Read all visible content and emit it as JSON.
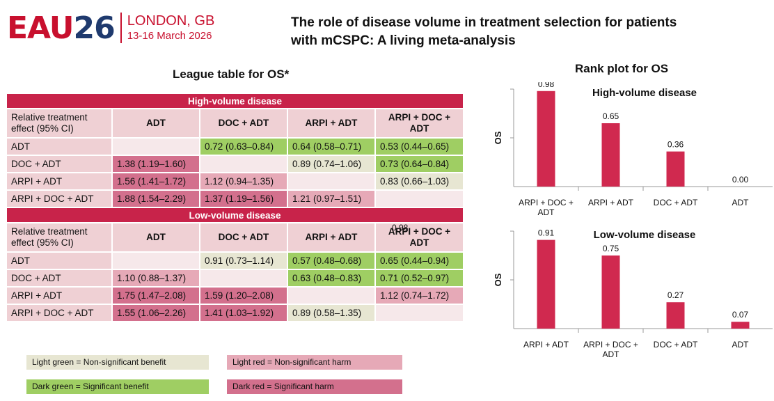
{
  "header": {
    "logo_eau": "EAU",
    "logo_num": "26",
    "logo_city": "LONDON, GB",
    "logo_dates": "13-16 March 2026",
    "title_line1": "The role of disease volume in treatment selection for patients",
    "title_line2": "with mCSPC: A living meta-analysis"
  },
  "league": {
    "title": "League table for OS*",
    "stray_label": "0.98",
    "sections": [
      {
        "name": "High-volume disease",
        "corner": "Relative treatment effect (95% CI)",
        "columns": [
          "ADT",
          "DOC + ADT",
          "ARPI + ADT",
          "ARPI + DOC + ADT"
        ],
        "rows": [
          {
            "label": "ADT",
            "cells": [
              {
                "text": "",
                "fill": "empty"
              },
              {
                "text": "0.72 (0.63–0.84)",
                "fill": "dark-green"
              },
              {
                "text": "0.64 (0.58–0.71)",
                "fill": "dark-green"
              },
              {
                "text": "0.53 (0.44–0.65)",
                "fill": "dark-green"
              }
            ]
          },
          {
            "label": "DOC + ADT",
            "cells": [
              {
                "text": "1.38 (1.19–1.60)",
                "fill": "dark-red"
              },
              {
                "text": "",
                "fill": "empty"
              },
              {
                "text": "0.89 (0.74–1.06)",
                "fill": "light-green"
              },
              {
                "text": "0.73 (0.64–0.84)",
                "fill": "dark-green"
              }
            ]
          },
          {
            "label": "ARPI + ADT",
            "cells": [
              {
                "text": "1.56 (1.41–1.72)",
                "fill": "dark-red"
              },
              {
                "text": "1.12 (0.94–1.35)",
                "fill": "light-red"
              },
              {
                "text": "",
                "fill": "empty"
              },
              {
                "text": "0.83 (0.66–1.03)",
                "fill": "light-green"
              }
            ]
          },
          {
            "label": "ARPI + DOC + ADT",
            "cells": [
              {
                "text": "1.88 (1.54–2.29)",
                "fill": "dark-red"
              },
              {
                "text": "1.37 (1.19–1.56)",
                "fill": "dark-red"
              },
              {
                "text": "1.21 (0.97–1.51)",
                "fill": "light-red"
              },
              {
                "text": "",
                "fill": "empty"
              }
            ]
          }
        ]
      },
      {
        "name": "Low-volume disease",
        "corner": "Relative treatment effect (95% CI)",
        "columns": [
          "ADT",
          "DOC + ADT",
          "ARPI + ADT",
          "ARPI + DOC + ADT"
        ],
        "rows": [
          {
            "label": "ADT",
            "cells": [
              {
                "text": "",
                "fill": "empty"
              },
              {
                "text": "0.91 (0.73–1.14)",
                "fill": "light-green"
              },
              {
                "text": "0.57 (0.48–0.68)",
                "fill": "dark-green"
              },
              {
                "text": "0.65 (0.44–0.94)",
                "fill": "dark-green"
              }
            ]
          },
          {
            "label": "DOC + ADT",
            "cells": [
              {
                "text": "1.10 (0.88–1.37)",
                "fill": "light-red"
              },
              {
                "text": "",
                "fill": "empty"
              },
              {
                "text": "0.63 (0.48–0.83)",
                "fill": "dark-green"
              },
              {
                "text": "0.71 (0.52–0.97)",
                "fill": "dark-green"
              }
            ]
          },
          {
            "label": "ARPI + ADT",
            "cells": [
              {
                "text": "1.75 (1.47–2.08)",
                "fill": "dark-red"
              },
              {
                "text": "1.59 (1.20–2.08)",
                "fill": "dark-red"
              },
              {
                "text": "",
                "fill": "empty"
              },
              {
                "text": "1.12 (0.74–1.72)",
                "fill": "light-red"
              }
            ]
          },
          {
            "label": "ARPI + DOC + ADT",
            "cells": [
              {
                "text": "1.55 (1.06–2.26)",
                "fill": "dark-red"
              },
              {
                "text": "1.41 (1.03–1.92)",
                "fill": "dark-red"
              },
              {
                "text": "0.89 (0.58–1.35)",
                "fill": "light-green"
              },
              {
                "text": "",
                "fill": "empty"
              }
            ]
          }
        ]
      }
    ]
  },
  "legend": [
    {
      "label": "Light green = Non-significant benefit",
      "fill": "light-green"
    },
    {
      "label": "Light red = Non-significant harm",
      "fill": "light-red"
    },
    {
      "label": "Dark green = Significant benefit",
      "fill": "dark-green"
    },
    {
      "label": "Dark red = Significant harm",
      "fill": "dark-red"
    }
  ],
  "colors": {
    "section_bar": "#c8234a",
    "header_cell": "#efd0d4",
    "empty": "#f6e8ea",
    "dark-green": "#9fce63",
    "light-green": "#e7e6d2",
    "light-red": "#e6a9b7",
    "dark-red": "#d3708d",
    "bar": "#d0294f"
  },
  "rank_title": "Rank plot for OS",
  "chart_data": [
    {
      "type": "bar",
      "title": "High-volume disease",
      "ylabel": "OS",
      "ylim": [
        0,
        1
      ],
      "yticks": [
        0.5
      ],
      "categories": [
        "ARPI + DOC + ADT",
        "ARPI + ADT",
        "DOC + ADT",
        "ADT"
      ],
      "values": [
        0.98,
        0.65,
        0.36,
        0.0
      ],
      "value_labels": [
        "0.98",
        "0.65",
        "0.36",
        "0.00"
      ],
      "grid": false,
      "legend": "none"
    },
    {
      "type": "bar",
      "title": "Low-volume disease",
      "ylabel": "OS",
      "ylim": [
        0,
        1
      ],
      "yticks": [
        0.5
      ],
      "categories": [
        "ARPI + ADT",
        "ARPI + DOC + ADT",
        "DOC + ADT",
        "ADT"
      ],
      "values": [
        0.91,
        0.75,
        0.27,
        0.07
      ],
      "value_labels": [
        "0.91",
        "0.75",
        "0.27",
        "0.07"
      ],
      "grid": false,
      "legend": "none"
    }
  ]
}
